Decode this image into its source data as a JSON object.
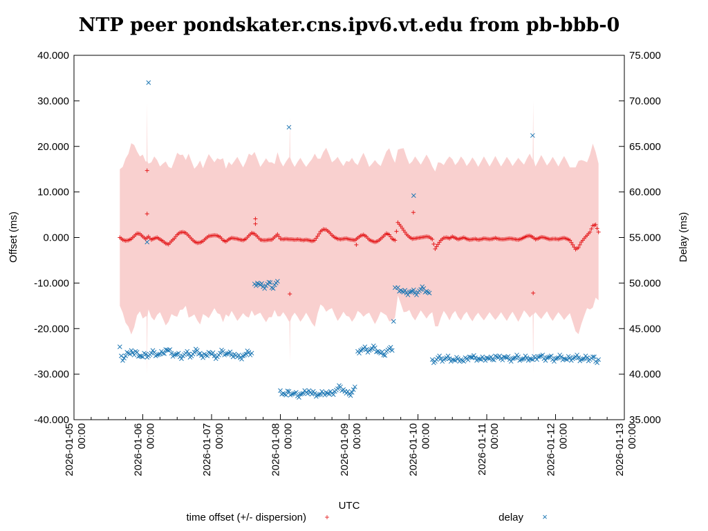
{
  "chart_data": {
    "type": "scatter",
    "title": "NTP peer pondskater.cns.ipv6.vt.edu from pb-bbb-0",
    "xlabel": "UTC",
    "ylabel": "Offset (ms)",
    "y2label": "Delay (ms)",
    "xlim_hours_from": "2026-01-05 00:00",
    "xlim_hours": [
      0,
      192
    ],
    "ylim": [
      -40,
      40
    ],
    "y2lim": [
      35,
      75
    ],
    "grid": false,
    "legend_placement": "bottom",
    "x_ticks": [
      [
        "2026-01-05",
        "00:00"
      ],
      [
        "2026-01-06",
        "00:00"
      ],
      [
        "2026-01-07",
        "00:00"
      ],
      [
        "2026-01-08",
        "00:00"
      ],
      [
        "2026-01-09",
        "00:00"
      ],
      [
        "2026-01-10",
        "00:00"
      ],
      [
        "2026-01-11",
        "00:00"
      ],
      [
        "2026-01-12",
        "00:00"
      ],
      [
        "2026-01-13",
        "00:00"
      ]
    ],
    "y_ticks": [
      "-40.000",
      "-30.000",
      "-20.000",
      "-10.000",
      "0.000",
      "10.000",
      "20.000",
      "30.000",
      "40.000"
    ],
    "y2_ticks": [
      "35.000",
      "40.000",
      "45.000",
      "50.000",
      "55.000",
      "60.000",
      "65.000",
      "70.000",
      "75.000"
    ],
    "colors": {
      "offset": "#e41a1c",
      "band": "#f9d0cf",
      "delay": "#1f78b4"
    },
    "series": [
      {
        "name": "time offset (+/- dispersion)",
        "marker": "+",
        "start_hour": 16,
        "step_hours": 1,
        "values": [
          0.0,
          -0.5,
          -0.7,
          -0.6,
          -0.3,
          0.3,
          0.9,
          0.8,
          0.2,
          -0.3,
          0.2,
          -0.5,
          -0.2,
          0.0,
          -0.4,
          -0.8,
          -1.3,
          -1.5,
          -0.8,
          -0.2,
          0.6,
          1.1,
          1.2,
          1.0,
          0.4,
          -0.3,
          -0.9,
          -1.2,
          -1.1,
          -0.8,
          -0.2,
          0.3,
          0.4,
          0.5,
          0.4,
          0.1,
          -0.6,
          -0.9,
          -0.4,
          -0.1,
          -0.2,
          -0.3,
          -0.5,
          -0.6,
          -0.3,
          0.4,
          1.0,
          0.8,
          0.2,
          -0.5,
          -0.6,
          -0.6,
          -0.5,
          -0.5,
          0.1,
          0.7,
          -0.3,
          -0.4,
          -0.3,
          -0.4,
          -0.4,
          -0.5,
          -0.4,
          -0.5,
          -0.6,
          -0.5,
          -0.6,
          -0.8,
          -0.6,
          0.3,
          1.3,
          1.8,
          1.7,
          1.2,
          0.5,
          0.0,
          -0.3,
          -0.4,
          -0.3,
          -0.2,
          -0.4,
          -0.5,
          -0.6,
          -0.1,
          0.4,
          0.6,
          0.2,
          -0.5,
          -0.8,
          -1.0,
          -0.8,
          -0.3,
          0.3,
          0.9,
          0.6,
          -0.3,
          -0.6,
          3.3,
          2.5,
          1.6,
          0.7,
          0.1,
          -0.3,
          -0.2,
          -0.1,
          0.0,
          0.1,
          0.2,
          0.1,
          -0.4,
          -2.5,
          -1.5,
          -0.6,
          -0.1,
          0.0,
          -0.2,
          0.2,
          -0.1,
          -0.4,
          -0.2,
          0.0,
          -0.3,
          -0.5,
          -0.4,
          -0.3,
          -0.5,
          -0.4,
          -0.2,
          -0.3,
          -0.4,
          -0.3,
          -0.1,
          -0.3,
          -0.4,
          -0.4,
          -0.3,
          -0.2,
          -0.3,
          -0.4,
          -0.5,
          -0.3,
          0.0,
          0.3,
          0.4,
          0.1,
          -0.4,
          -0.2,
          0.1,
          0.0,
          -0.2,
          -0.4,
          -0.3,
          -0.3,
          -0.4,
          -0.2,
          -0.1,
          -0.3,
          -0.6,
          -1.6,
          -2.6,
          -2.2,
          -1.0,
          -0.2,
          0.5,
          1.2,
          2.6,
          2.8,
          1.2
        ],
        "dispersion": [
          15,
          16,
          18,
          19,
          21,
          20,
          18,
          17,
          18,
          17,
          16,
          17,
          18,
          17,
          16,
          17,
          18,
          17,
          16,
          17,
          18,
          17,
          17,
          16,
          18,
          17,
          16,
          17,
          18,
          16,
          17,
          18,
          17,
          16,
          17,
          17,
          18,
          16,
          17,
          16,
          17,
          18,
          17,
          16,
          17,
          18,
          17,
          18,
          17,
          16,
          17,
          18,
          17,
          17,
          16,
          18,
          17,
          16,
          17,
          18,
          17,
          16,
          17,
          18,
          17,
          16,
          17,
          18,
          19,
          17,
          16,
          17,
          18,
          17,
          16,
          17,
          18,
          17,
          16,
          17,
          17,
          18,
          17,
          16,
          17,
          18,
          17,
          16,
          17,
          18,
          17,
          16,
          17,
          18,
          19,
          18,
          17,
          16,
          17,
          18,
          17,
          16,
          17,
          18,
          17,
          16,
          17,
          18,
          17,
          16,
          17,
          18,
          17,
          16,
          17,
          18,
          17,
          16,
          17,
          18,
          17,
          16,
          17,
          18,
          17,
          16,
          17,
          18,
          17,
          16,
          17,
          18,
          17,
          16,
          17,
          18,
          17,
          16,
          17,
          18,
          17,
          16,
          17,
          18,
          17,
          16,
          17,
          18,
          17,
          16,
          17,
          18,
          17,
          16,
          17,
          18,
          17,
          16,
          17,
          18,
          19,
          18,
          17,
          16,
          17,
          18,
          16,
          15
        ],
        "dispersion_spikes": [
          [
            25.5,
            30
          ],
          [
            75.3,
            27
          ],
          [
            160.2,
            30
          ]
        ],
        "outliers": [
          [
            25.5,
            14.7
          ],
          [
            25.5,
            5.2
          ],
          [
            63.3,
            4.1
          ],
          [
            63.3,
            3.0
          ],
          [
            75.3,
            -12.4
          ],
          [
            98.5,
            -1.6
          ],
          [
            118.4,
            5.5
          ],
          [
            160.2,
            -12.2
          ]
        ]
      },
      {
        "name": "delay",
        "marker": "x",
        "axis": "y2",
        "segments": [
          {
            "start_hour": 16,
            "values": [
              43.0,
              41.5,
              42.0,
              42.3,
              42.6,
              42.1,
              42.4,
              42.0,
              41.9,
              42.2,
              42.0,
              42.3,
              42.4,
              42.1,
              42.2,
              42.3,
              42.7,
              42.6,
              42.3,
              42.1,
              42.2,
              41.9,
              42.0,
              42.3,
              42.2,
              42.0,
              42.4,
              42.6,
              42.3,
              41.8,
              42.1,
              42.4,
              42.2,
              42.0,
              41.9,
              42.3,
              42.5,
              42.2,
              42.3,
              42.1,
              42.2,
              41.9,
              41.8,
              42.0,
              42.2,
              42.4,
              42.3
            ]
          },
          {
            "start_hour": 63,
            "values": [
              49.9,
              50.0,
              49.8,
              49.6,
              49.7,
              50.1,
              49.5,
              49.8,
              50.2
            ]
          },
          {
            "start_hour": 72,
            "values": [
              38.2,
              37.9,
              37.7,
              38.1,
              37.8,
              37.9,
              37.6,
              37.8,
              37.9,
              38.0,
              38.2,
              37.8,
              37.9,
              37.7,
              37.8,
              37.9,
              38.0,
              37.8,
              37.9,
              38.1,
              38.4,
              38.6,
              38.3,
              37.9,
              37.8,
              38.0,
              38.6
            ]
          },
          {
            "start_hour": 99,
            "values": [
              42.5,
              42.6,
              42.8,
              42.7,
              42.6,
              42.8,
              42.9,
              42.5,
              42.3,
              42.1,
              42.5,
              42.8,
              42.6,
              49.5
            ]
          },
          {
            "start_hour": 113,
            "values": [
              49.5,
              49.2,
              49.0,
              48.9,
              49.0,
              49.1,
              48.9,
              49.0,
              49.3,
              49.4,
              49.1,
              48.9
            ]
          },
          {
            "start_hour": 125,
            "values": [
              41.6,
              41.4,
              41.8,
              41.7,
              41.6,
              41.8,
              41.7,
              41.6,
              41.5,
              41.7,
              41.6,
              41.4,
              41.7,
              41.9,
              41.8,
              41.8,
              41.7,
              41.6,
              41.7,
              41.8,
              41.7,
              41.6,
              42.0,
              41.8,
              41.7,
              41.9,
              41.8,
              41.6,
              41.7,
              41.8,
              41.9,
              41.6,
              41.7,
              41.8,
              41.7,
              41.6,
              41.8,
              41.9,
              42.0,
              41.7,
              41.8,
              41.9,
              41.6,
              41.7,
              41.8,
              41.9,
              41.7,
              41.6,
              41.8,
              41.7,
              41.9,
              41.8,
              41.6,
              41.7,
              41.8,
              41.6,
              41.9,
              41.4,
              41.6
            ]
          }
        ],
        "outliers": [
          [
            26,
            72.0
          ],
          [
            25.5,
            54.5
          ],
          [
            75,
            67.1
          ],
          [
            118.5,
            59.6
          ],
          [
            160,
            66.2
          ]
        ]
      }
    ]
  }
}
